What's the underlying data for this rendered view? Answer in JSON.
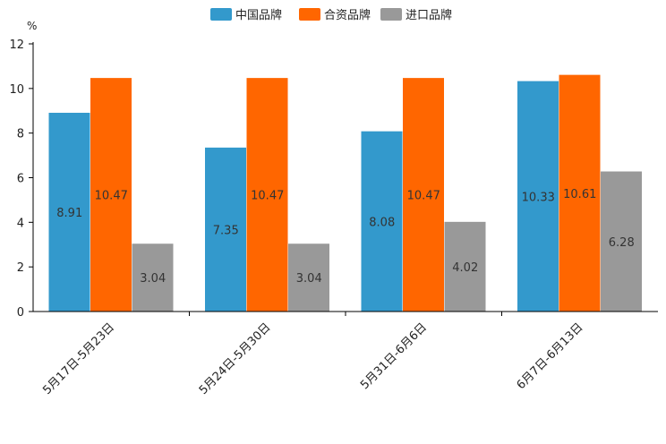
{
  "chart_data": {
    "type": "bar",
    "title": "",
    "unit": "%",
    "xlabel": "",
    "ylabel": "",
    "ylim": [
      0,
      12
    ],
    "yticks": [
      0,
      2,
      4,
      6,
      8,
      10,
      12
    ],
    "grid": false,
    "legend_position": "top-center",
    "categories": [
      "5月17日-5月23日",
      "5月24日-5月30日",
      "5月31日-6月6日",
      "6月7日-6月13日"
    ],
    "series": [
      {
        "name": "中国品牌",
        "color": "#3399CC",
        "values": [
          8.91,
          7.35,
          8.08,
          10.33
        ]
      },
      {
        "name": "合资品牌",
        "color": "#FF6600",
        "values": [
          10.47,
          10.47,
          10.47,
          10.61
        ]
      },
      {
        "name": "进口品牌",
        "color": "#999999",
        "values": [
          3.04,
          3.04,
          4.02,
          6.28
        ]
      }
    ]
  }
}
